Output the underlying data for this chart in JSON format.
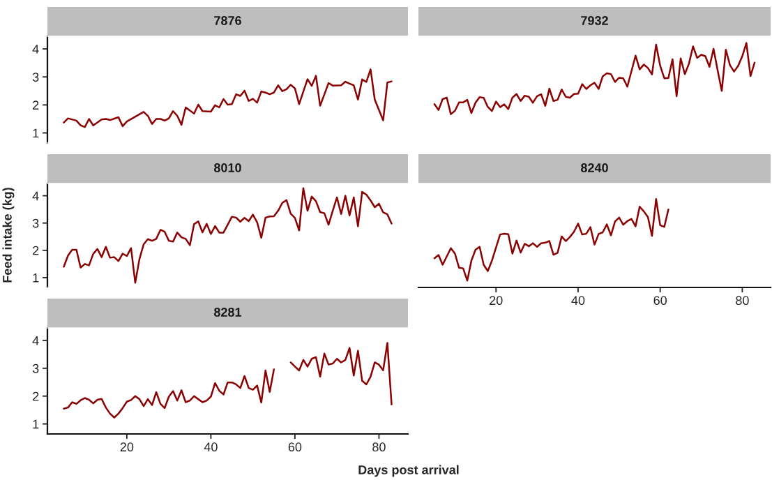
{
  "chart_data": [
    {
      "type": "line",
      "title": "7876",
      "color": "#8b0000",
      "xlim": [
        1.1,
        86.9
      ],
      "ylim": [
        0.64,
        4.45
      ],
      "xticks": [
        20,
        40,
        60,
        80
      ],
      "yticks": [
        1,
        2,
        3,
        4
      ],
      "tick_labels": "y",
      "x": [
        5,
        6,
        8,
        9,
        10,
        11,
        12,
        14,
        15,
        16,
        18,
        19,
        20,
        24,
        25,
        26,
        27,
        28,
        29,
        30,
        31,
        32,
        33,
        34,
        36,
        37,
        38,
        40,
        41,
        42,
        43,
        44,
        45,
        46,
        47,
        48,
        49,
        50,
        51,
        52,
        53,
        54,
        55,
        56,
        57,
        58,
        59,
        60,
        61,
        63,
        64,
        65,
        66,
        68,
        69,
        71,
        72,
        73,
        74,
        75,
        76,
        77,
        78,
        79,
        81,
        82,
        83
      ],
      "values": [
        1.37,
        1.52,
        1.44,
        1.27,
        1.21,
        1.5,
        1.27,
        1.48,
        1.5,
        1.46,
        1.56,
        1.24,
        1.41,
        1.75,
        1.61,
        1.32,
        1.5,
        1.5,
        1.44,
        1.52,
        1.78,
        1.61,
        1.29,
        1.91,
        1.69,
        2.01,
        1.78,
        1.76,
        1.99,
        1.91,
        2.21,
        2.01,
        2.03,
        2.38,
        2.32,
        2.51,
        2.14,
        2.22,
        2.08,
        2.48,
        2.44,
        2.38,
        2.44,
        2.7,
        2.49,
        2.56,
        2.72,
        2.59,
        2.03,
        2.92,
        2.68,
        3.04,
        1.97,
        2.78,
        2.69,
        2.7,
        2.83,
        2.76,
        2.7,
        2.19,
        2.91,
        2.82,
        3.27,
        2.19,
        1.45,
        2.8,
        2.84
      ]
    },
    {
      "type": "line",
      "title": "7932",
      "color": "#8b0000",
      "xlim": [
        1.1,
        86.9
      ],
      "ylim": [
        0.64,
        4.45
      ],
      "xticks": [
        20,
        40,
        60,
        80
      ],
      "yticks": [
        1,
        2,
        3,
        4
      ],
      "tick_labels": false,
      "x": [
        5,
        6,
        7,
        8,
        9,
        10,
        11,
        12,
        13,
        14,
        15,
        16,
        17,
        18,
        19,
        20,
        21,
        22,
        23,
        24,
        25,
        26,
        27,
        28,
        29,
        30,
        31,
        32,
        33,
        34,
        35,
        36,
        37,
        38,
        39,
        40,
        41,
        42,
        43,
        44,
        45,
        46,
        47,
        48,
        49,
        50,
        51,
        52,
        54,
        55,
        56,
        57,
        58,
        59,
        60,
        61,
        62,
        63,
        64,
        65,
        66,
        67,
        68,
        69,
        70,
        71,
        72,
        73,
        74,
        75,
        76,
        77,
        78,
        79,
        80,
        81,
        82,
        83
      ],
      "values": [
        2.03,
        1.82,
        2.21,
        2.26,
        1.67,
        1.79,
        2.09,
        2.09,
        2.18,
        1.71,
        2.08,
        2.28,
        2.25,
        1.93,
        1.78,
        2.12,
        1.92,
        2.02,
        1.85,
        2.26,
        2.39,
        2.14,
        2.33,
        2.29,
        2.08,
        2.31,
        2.38,
        1.97,
        2.58,
        2.14,
        2.18,
        2.55,
        2.29,
        2.26,
        2.39,
        2.4,
        2.74,
        2.57,
        2.7,
        2.79,
        2.57,
        3.02,
        3.13,
        3.1,
        2.82,
        2.97,
        2.95,
        2.65,
        3.76,
        3.27,
        3.44,
        3.32,
        3.09,
        4.15,
        3.4,
        2.95,
        2.96,
        3.63,
        2.31,
        3.66,
        3.1,
        3.47,
        4.09,
        3.68,
        3.79,
        3.74,
        3.36,
        4.0,
        3.23,
        2.5,
        3.97,
        3.42,
        3.19,
        3.4,
        3.74,
        4.21,
        3.03,
        3.51
      ]
    },
    {
      "type": "line",
      "title": "8010",
      "ylabel": "Feed intake (kg)",
      "color": "#8b0000",
      "xlim": [
        1.1,
        86.9
      ],
      "ylim": [
        0.64,
        4.45
      ],
      "xticks": [
        20,
        40,
        60,
        80
      ],
      "yticks": [
        1,
        2,
        3,
        4
      ],
      "tick_labels": "y",
      "x": [
        5,
        6,
        7,
        8,
        9,
        10,
        11,
        12,
        13,
        14,
        15,
        16,
        17,
        18,
        19,
        20,
        21,
        22,
        23,
        24,
        25,
        26,
        27,
        28,
        29,
        30,
        31,
        32,
        33,
        34,
        35,
        36,
        37,
        38,
        39,
        40,
        41,
        42,
        43,
        44,
        45,
        46,
        47,
        48,
        49,
        50,
        51,
        52,
        53,
        54,
        55,
        56,
        57,
        58,
        59,
        60,
        61,
        62,
        63,
        64,
        65,
        66,
        67,
        68,
        69,
        70,
        71,
        72,
        73,
        74,
        75,
        76,
        77,
        78,
        79,
        80,
        81,
        82,
        83
      ],
      "values": [
        1.4,
        1.81,
        2.02,
        2.02,
        1.37,
        1.5,
        1.45,
        1.87,
        2.05,
        1.75,
        2.13,
        1.73,
        1.75,
        1.61,
        1.88,
        1.79,
        2.08,
        0.81,
        1.68,
        2.22,
        2.41,
        2.35,
        2.42,
        2.75,
        2.68,
        2.35,
        2.32,
        2.65,
        2.48,
        2.42,
        2.19,
        2.96,
        3.06,
        2.66,
        2.97,
        2.6,
        2.89,
        2.65,
        2.65,
        2.94,
        3.23,
        3.2,
        3.05,
        3.19,
        3.07,
        3.31,
        3.03,
        2.46,
        3.2,
        3.24,
        3.25,
        3.45,
        3.74,
        3.84,
        3.34,
        3.19,
        2.73,
        4.28,
        3.45,
        3.97,
        3.8,
        3.4,
        3.36,
        2.94,
        3.45,
        3.94,
        3.33,
        4.0,
        3.28,
        3.94,
        2.88,
        4.14,
        4.04,
        3.83,
        3.58,
        3.71,
        3.39,
        3.32,
        2.98
      ]
    },
    {
      "type": "line",
      "title": "8240",
      "color": "#8b0000",
      "xlim": [
        1.1,
        86.9
      ],
      "ylim": [
        0.64,
        4.45
      ],
      "xticks": [
        20,
        40,
        60,
        80
      ],
      "yticks": [
        1,
        2,
        3,
        4
      ],
      "tick_labels": "x",
      "x": [
        5,
        6,
        7,
        9,
        10,
        11,
        12,
        13,
        14,
        15,
        16,
        17,
        18,
        19,
        21,
        22,
        23,
        24,
        25,
        26,
        27,
        28,
        29,
        30,
        31,
        32,
        33,
        34,
        35,
        36,
        37,
        38,
        39,
        40,
        41,
        42,
        43,
        44,
        45,
        46,
        47,
        48,
        49,
        50,
        51,
        52,
        53,
        54,
        55,
        56,
        57,
        58,
        59,
        60,
        61,
        62
      ],
      "values": [
        1.71,
        1.83,
        1.47,
        2.08,
        1.88,
        1.36,
        1.34,
        0.89,
        1.62,
        2.02,
        2.13,
        1.47,
        1.24,
        1.62,
        2.58,
        2.61,
        2.59,
        1.88,
        2.36,
        1.92,
        2.24,
        2.15,
        2.26,
        2.13,
        2.26,
        2.28,
        2.34,
        1.84,
        1.91,
        2.51,
        2.34,
        2.49,
        2.68,
        2.98,
        2.58,
        2.61,
        2.85,
        2.21,
        2.6,
        2.66,
        2.95,
        2.55,
        3.06,
        3.2,
        2.94,
        3.07,
        3.15,
        2.88,
        3.6,
        3.43,
        3.22,
        2.53,
        3.88,
        2.92,
        2.86,
        3.5
      ]
    },
    {
      "type": "line",
      "title": "8281",
      "xlabel": "Days post arrival",
      "color": "#8b0000",
      "xlim": [
        1.1,
        86.9
      ],
      "ylim": [
        0.64,
        4.45
      ],
      "xticks": [
        20,
        40,
        60,
        80
      ],
      "yticks": [
        1,
        2,
        3,
        4
      ],
      "x": [
        5,
        6,
        7,
        8,
        9,
        10,
        11,
        12,
        13,
        14,
        15,
        16,
        17,
        18,
        19,
        20,
        21,
        22,
        23,
        24,
        25,
        26,
        27,
        28,
        29,
        30,
        31,
        32,
        33,
        34,
        35,
        36,
        37,
        38,
        39,
        40,
        41,
        42,
        43,
        44,
        45,
        46,
        47,
        48,
        49,
        50,
        51,
        52,
        53,
        54,
        55,
        56,
        57,
        58,
        59,
        60,
        61,
        62,
        63,
        64,
        65,
        66,
        67,
        68,
        69,
        70,
        71,
        72,
        73,
        74,
        75,
        76,
        77,
        78,
        79,
        80,
        81,
        82,
        83
      ],
      "values": [
        1.55,
        1.59,
        1.78,
        1.72,
        1.85,
        1.93,
        1.87,
        1.74,
        1.87,
        1.9,
        1.59,
        1.37,
        1.23,
        1.37,
        1.57,
        1.8,
        1.86,
        2.0,
        1.89,
        1.64,
        1.89,
        1.68,
        2.14,
        1.72,
        1.57,
        1.98,
        2.18,
        1.84,
        2.21,
        1.78,
        1.84,
        2.0,
        1.89,
        1.78,
        1.84,
        1.98,
        2.47,
        2.19,
        2.06,
        2.49,
        2.49,
        2.42,
        2.29,
        2.72,
        2.29,
        2.23,
        2.38,
        1.77,
        2.92,
        2.15,
        2.96,
        null,
        null,
        null,
        3.21,
        3.06,
        2.92,
        3.3,
        3.06,
        3.34,
        3.4,
        2.7,
        3.53,
        3.13,
        3.17,
        3.34,
        3.21,
        3.3,
        3.73,
        2.74,
        3.63,
        2.55,
        2.42,
        2.7,
        3.21,
        3.13,
        2.93,
        3.91,
        1.7
      ]
    }
  ]
}
